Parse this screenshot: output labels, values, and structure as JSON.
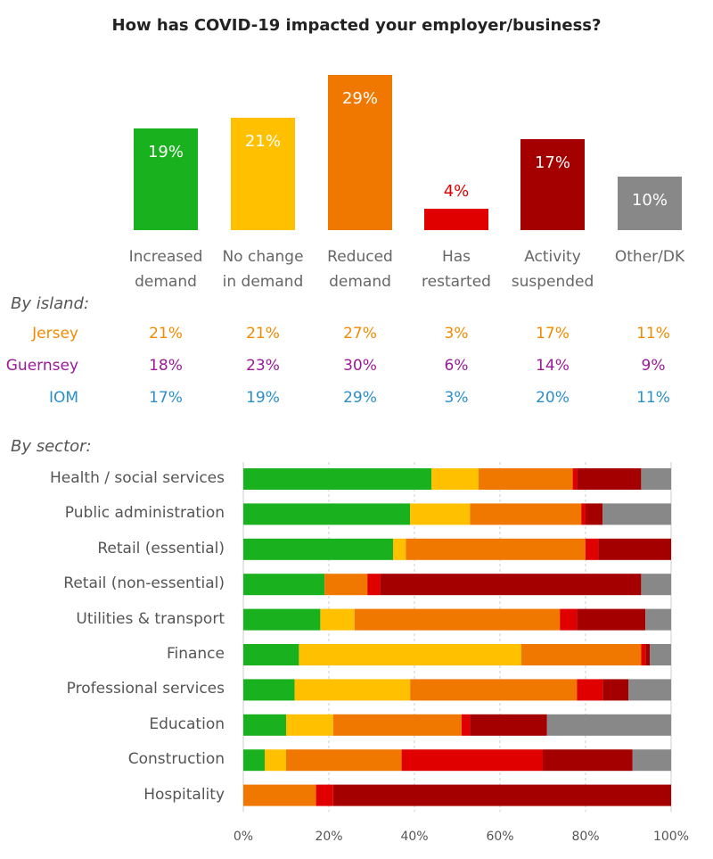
{
  "title": "How has COVID-19 impacted your employer/business?",
  "chart_data": [
    {
      "type": "bar",
      "categories": [
        "Increased demand",
        "No change in demand",
        "Reduced demand",
        "Has restarted",
        "Activity suspended",
        "Other/DK"
      ],
      "category_lines": [
        [
          "Increased",
          "demand"
        ],
        [
          "No change",
          "in demand"
        ],
        [
          "Reduced",
          "demand"
        ],
        [
          "Has",
          "restarted"
        ],
        [
          "Activity",
          "suspended"
        ],
        [
          "Other/DK",
          ""
        ]
      ],
      "values": [
        19,
        21,
        29,
        4,
        17,
        10
      ],
      "labels": [
        "19%",
        "21%",
        "29%",
        "4%",
        "17%",
        "10%"
      ],
      "colors": [
        "#19b21e",
        "#ffc000",
        "#f07800",
        "#e00000",
        "#a50000",
        "#888888"
      ],
      "label_colors": [
        "#ffffff",
        "#ffffff",
        "#ffffff",
        "#e00000",
        "#ffffff",
        "#ffffff"
      ]
    },
    {
      "type": "table",
      "heading": "By island:",
      "rows": [
        {
          "name": "Jersey",
          "color": "#f08a00",
          "values": [
            "21%",
            "21%",
            "27%",
            "3%",
            "17%",
            "11%"
          ]
        },
        {
          "name": "Guernsey",
          "color": "#9a1a9a",
          "values": [
            "18%",
            "23%",
            "30%",
            "6%",
            "14%",
            "9%"
          ]
        },
        {
          "name": "IOM",
          "color": "#2a8fc8",
          "values": [
            "17%",
            "19%",
            "29%",
            "3%",
            "20%",
            "11%"
          ]
        }
      ]
    },
    {
      "type": "bar",
      "stacked": true,
      "orientation": "horizontal",
      "heading": "By sector:",
      "categories": [
        "Health / social services",
        "Public administration",
        "Retail (essential)",
        "Retail (non-essential)",
        "Utilities & transport",
        "Finance",
        "Professional services",
        "Education",
        "Construction",
        "Hospitality"
      ],
      "series": [
        {
          "color": "#19b21e",
          "values": [
            44,
            39,
            35,
            19,
            18,
            13,
            12,
            10,
            5,
            0
          ]
        },
        {
          "color": "#ffc000",
          "values": [
            11,
            14,
            3,
            0,
            8,
            52,
            27,
            11,
            5,
            0
          ]
        },
        {
          "color": "#f07800",
          "values": [
            22,
            26,
            42,
            10,
            48,
            28,
            39,
            30,
            27,
            17
          ]
        },
        {
          "color": "#e00000",
          "values": [
            1,
            1,
            3,
            3,
            4,
            1,
            6,
            2,
            33,
            4
          ]
        },
        {
          "color": "#a50000",
          "values": [
            15,
            4,
            17,
            61,
            16,
            1,
            6,
            18,
            21,
            79
          ]
        },
        {
          "color": "#888888",
          "values": [
            7,
            16,
            0,
            7,
            6,
            5,
            10,
            29,
            9,
            0
          ]
        }
      ],
      "xticks": [
        "0%",
        "20%",
        "40%",
        "60%",
        "80%",
        "100%"
      ],
      "xlim": [
        0,
        100
      ],
      "grid": true
    }
  ]
}
